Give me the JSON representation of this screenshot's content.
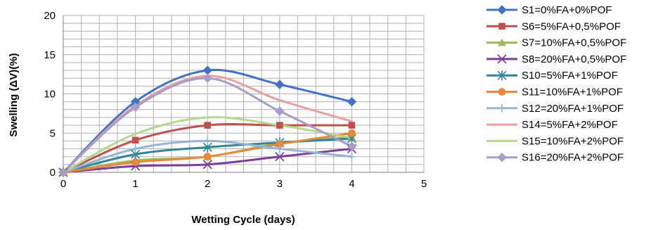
{
  "chart_data": {
    "type": "line",
    "title": "",
    "xlabel": "Wetting Cycle (days)",
    "ylabel": "Swelling (ΔV)(%)",
    "xlim": [
      0,
      5
    ],
    "ylim": [
      0,
      20
    ],
    "x_ticks": [
      0,
      1,
      2,
      3,
      4,
      5
    ],
    "y_ticks": [
      0,
      5,
      10,
      15,
      20
    ],
    "grid": true,
    "legend_position": "right",
    "x": [
      0,
      1,
      2,
      3,
      4
    ],
    "series": [
      {
        "name": "S1=0%FA+0%POF",
        "values": [
          0,
          9,
          13,
          11.2,
          9
        ],
        "color": "#4472C4",
        "marker": "diamond"
      },
      {
        "name": "S6=5%FA+0,5%POF",
        "values": [
          0,
          4.1,
          6,
          6,
          6
        ],
        "color": "#C0504D",
        "marker": "square"
      },
      {
        "name": "S7=10%FA+0,5%POF",
        "values": [
          0,
          1.5,
          2,
          3.7,
          4.5
        ],
        "color": "#9BBB59",
        "marker": "triangle"
      },
      {
        "name": "S8=20%FA+0,5%POF",
        "values": [
          0,
          0.8,
          1,
          2,
          3
        ],
        "color": "#7C3F98",
        "marker": "x"
      },
      {
        "name": "S10=5%FA+1%POF",
        "values": [
          0,
          2.3,
          3.2,
          3.8,
          4.3
        ],
        "color": "#31869B",
        "marker": "star"
      },
      {
        "name": "S11=10%FA+1%POF",
        "values": [
          0,
          1.3,
          2,
          3.6,
          5
        ],
        "color": "#E7883A",
        "marker": "circle"
      },
      {
        "name": "S12=20%FA+1%POF",
        "values": [
          0,
          3,
          4,
          3,
          2
        ],
        "color": "#95B3D7",
        "marker": "plus"
      },
      {
        "name": "S14=5%FA+2%POF",
        "values": [
          0,
          8.5,
          12.3,
          9.2,
          6.5
        ],
        "color": "#E6A0A0",
        "marker": "none"
      },
      {
        "name": "S15=10%FA+2%POF",
        "values": [
          0,
          4.9,
          7,
          6,
          4.4
        ],
        "color": "#B7D68E",
        "marker": "none"
      },
      {
        "name": "S16=20%FA+2%POF",
        "values": [
          0,
          8.3,
          12,
          7.8,
          3.3
        ],
        "color": "#A99BC9",
        "marker": "diamond"
      }
    ]
  }
}
